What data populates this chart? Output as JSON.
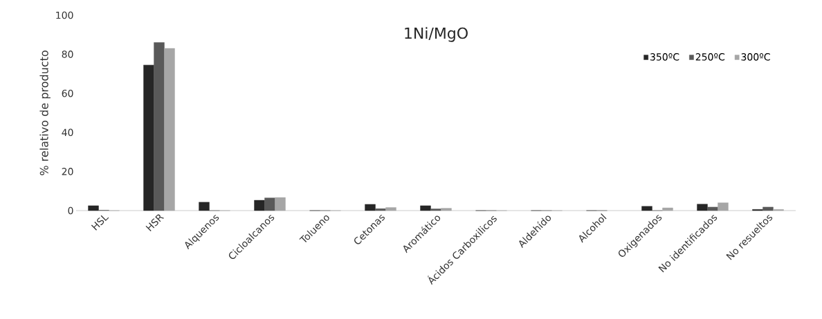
{
  "chart_data": {
    "type": "bar",
    "title": "1Ni/MgO",
    "ylabel": "% relativo de producto",
    "categories": [
      "HSL",
      "HSR",
      "Alquenos",
      "Cicloalcanos",
      "Tolueno",
      "Cetonas",
      "Aromático",
      "Ácidos Carboxilicos",
      "Aldehído",
      "Alcohol",
      "Oxigenados",
      "No identificados",
      "No resueltos"
    ],
    "series": [
      {
        "name": "350ºC",
        "color": "#262626",
        "values": [
          2.5,
          74.5,
          4.3,
          5.3,
          0,
          3.2,
          2.5,
          0,
          0,
          0,
          2.2,
          3.3,
          0.6
        ]
      },
      {
        "name": "250ºC",
        "color": "#595959",
        "values": [
          0.2,
          86,
          0,
          6.5,
          0,
          1,
          0.9,
          0,
          0,
          0,
          0,
          1.8,
          1.8
        ]
      },
      {
        "name": "300ºC",
        "color": "#a6a6a6",
        "values": [
          0,
          83,
          0,
          6.7,
          0,
          1.6,
          1.2,
          0,
          0,
          null,
          1.4,
          4,
          0.6
        ]
      }
    ],
    "ylim": [
      0,
      100
    ],
    "yticks": [
      0,
      20,
      40,
      60,
      80,
      100
    ],
    "legend": "top right"
  }
}
